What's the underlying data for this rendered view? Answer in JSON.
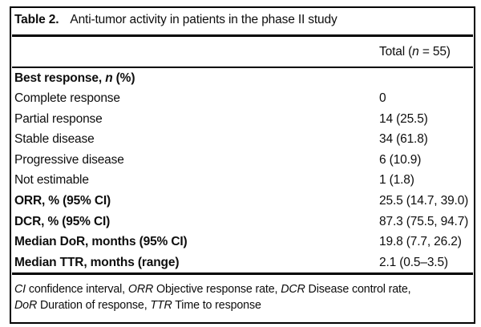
{
  "page": {
    "colors": {
      "background": "#ffffff",
      "text": "#0d0d0d",
      "rule": "#000000"
    }
  },
  "table": {
    "title": {
      "label": "Table 2.",
      "text": "Anti-tumor activity in patients in the phase II study"
    },
    "header": {
      "value_segments": [
        {
          "text": "Total ("
        },
        {
          "text": "n",
          "italic": true
        },
        {
          "text": " = 55)"
        }
      ]
    },
    "rows": [
      {
        "bold": true,
        "label_segments": [
          {
            "text": "Best response, "
          },
          {
            "text": "n",
            "italic": true
          },
          {
            "text": " (%)"
          }
        ],
        "value": ""
      },
      {
        "bold": false,
        "label_segments": [
          {
            "text": "Complete response"
          }
        ],
        "value": "0"
      },
      {
        "bold": false,
        "label_segments": [
          {
            "text": "Partial response"
          }
        ],
        "value": "14 (25.5)"
      },
      {
        "bold": false,
        "label_segments": [
          {
            "text": "Stable disease"
          }
        ],
        "value": "34 (61.8)"
      },
      {
        "bold": false,
        "label_segments": [
          {
            "text": "Progressive disease"
          }
        ],
        "value": "6 (10.9)"
      },
      {
        "bold": false,
        "label_segments": [
          {
            "text": "Not estimable"
          }
        ],
        "value": "1 (1.8)"
      },
      {
        "bold": true,
        "label_segments": [
          {
            "text": "ORR, % (95% CI)"
          }
        ],
        "value": "25.5 (14.7, 39.0)"
      },
      {
        "bold": true,
        "label_segments": [
          {
            "text": "DCR, % (95% CI)"
          }
        ],
        "value": "87.3 (75.5, 94.7)"
      },
      {
        "bold": true,
        "label_segments": [
          {
            "text": "Median DoR, months (95% CI)"
          }
        ],
        "value": "19.8 (7.7, 26.2)"
      },
      {
        "bold": true,
        "label_segments": [
          {
            "text": "Median TTR, months (range)"
          }
        ],
        "value": "2.1 (0.5–3.5)"
      }
    ],
    "footnote_lines": [
      [
        {
          "text": "CI",
          "italic": true
        },
        {
          "text": " confidence interval, "
        },
        {
          "text": "ORR",
          "italic": true
        },
        {
          "text": " Objective response rate, "
        },
        {
          "text": "DCR",
          "italic": true
        },
        {
          "text": " Disease control rate,"
        }
      ],
      [
        {
          "text": "DoR",
          "italic": true
        },
        {
          "text": " Duration of response, "
        },
        {
          "text": "TTR",
          "italic": true
        },
        {
          "text": " Time to response"
        }
      ]
    ]
  },
  "chart_data": {
    "type": "table",
    "title": "Table 2. Anti-tumor activity in patients in the phase II study",
    "columns": [
      "",
      "Total (n = 55)"
    ],
    "rows": [
      [
        "Best response, n (%)",
        ""
      ],
      [
        "Complete response",
        "0"
      ],
      [
        "Partial response",
        "14 (25.5)"
      ],
      [
        "Stable disease",
        "34 (61.8)"
      ],
      [
        "Progressive disease",
        "6 (10.9)"
      ],
      [
        "Not estimable",
        "1 (1.8)"
      ],
      [
        "ORR, % (95% CI)",
        "25.5 (14.7, 39.0)"
      ],
      [
        "DCR, % (95% CI)",
        "87.3 (75.5, 94.7)"
      ],
      [
        "Median DoR, months (95% CI)",
        "19.8 (7.7, 26.2)"
      ],
      [
        "Median TTR, months (range)",
        "2.1 (0.5–3.5)"
      ]
    ],
    "footnote": "CI confidence interval, ORR Objective response rate, DCR Disease control rate, DoR Duration of response, TTR Time to response"
  }
}
